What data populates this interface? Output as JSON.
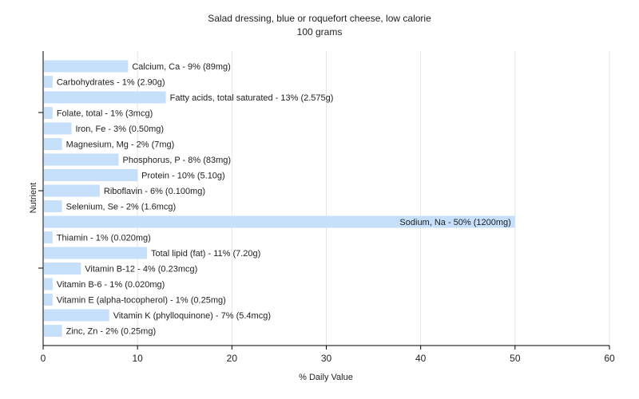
{
  "chart_data": {
    "type": "bar",
    "orientation": "horizontal",
    "title": "Salad dressing, blue or roquefort cheese, low calorie",
    "subtitle": "100 grams",
    "xlabel": "% Daily Value",
    "ylabel": "Nutrient",
    "xlim": [
      0,
      60
    ],
    "xticks": [
      0,
      10,
      20,
      30,
      40,
      50,
      60
    ],
    "grid": true,
    "legend": "none",
    "bar_color": "#c6dffb",
    "categories": [
      "Calcium, Ca",
      "Carbohydrates",
      "Fatty acids, total saturated",
      "Folate, total",
      "Iron, Fe",
      "Magnesium, Mg",
      "Phosphorus, P",
      "Protein",
      "Riboflavin",
      "Selenium, Se",
      "Sodium, Na",
      "Thiamin",
      "Total lipid (fat)",
      "Vitamin B-12",
      "Vitamin B-6",
      "Vitamin E (alpha-tocopherol)",
      "Vitamin K (phylloquinone)",
      "Zinc, Zn"
    ],
    "values": [
      9,
      1,
      13,
      1,
      3,
      2,
      8,
      10,
      6,
      2,
      50,
      1,
      11,
      4,
      1,
      1,
      7,
      2
    ],
    "data_labels": [
      "Calcium, Ca - 9% (89mg)",
      "Carbohydrates - 1% (2.90g)",
      "Fatty acids, total saturated - 13% (2.575g)",
      "Folate, total - 1% (3mcg)",
      "Iron, Fe - 3% (0.50mg)",
      "Magnesium, Mg - 2% (7mg)",
      "Phosphorus, P - 8% (83mg)",
      "Protein - 10% (5.10g)",
      "Riboflavin - 6% (0.100mg)",
      "Selenium, Se - 2% (1.6mcg)",
      "Sodium, Na - 50% (1200mg)",
      "Thiamin - 1% (0.020mg)",
      "Total lipid (fat) - 11% (7.20g)",
      "Vitamin B-12 - 4% (0.23mcg)",
      "Vitamin B-6 - 1% (0.020mg)",
      "Vitamin E (alpha-tocopherol) - 1% (0.25mg)",
      "Vitamin K (phylloquinone) - 7% (5.4mcg)",
      "Zinc, Zn - 2% (0.25mg)"
    ]
  }
}
